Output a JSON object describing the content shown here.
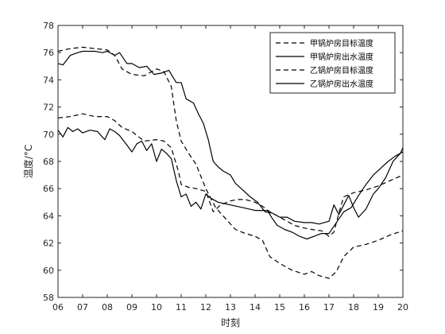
{
  "chart_data": {
    "type": "line",
    "xlabel": "时刻",
    "ylabel": "温度/°C",
    "xlim": [
      6,
      20
    ],
    "ylim": [
      58,
      78
    ],
    "x_ticks": [
      6,
      7,
      8,
      9,
      10,
      11,
      12,
      13,
      14,
      15,
      16,
      17,
      18,
      19,
      20
    ],
    "x_tick_labels": [
      "06",
      "07",
      "08",
      "09",
      "10",
      "11",
      "12",
      "13",
      "14",
      "15",
      "16",
      "17",
      "18",
      "19",
      "20"
    ],
    "y_ticks": [
      58,
      60,
      62,
      64,
      66,
      68,
      70,
      72,
      74,
      76,
      78
    ],
    "legend_position": "top-right",
    "grid": false,
    "series": [
      {
        "name": "甲锅炉房目标温度",
        "style": "dashed",
        "color": "#000000",
        "points": [
          [
            6.0,
            76.1
          ],
          [
            6.5,
            76.3
          ],
          [
            7.0,
            76.4
          ],
          [
            7.5,
            76.3
          ],
          [
            8.0,
            76.2
          ],
          [
            8.3,
            75.8
          ],
          [
            8.6,
            74.8
          ],
          [
            9.0,
            74.4
          ],
          [
            9.5,
            74.3
          ],
          [
            10.0,
            74.8
          ],
          [
            10.3,
            74.6
          ],
          [
            10.6,
            73.5
          ],
          [
            10.8,
            71.0
          ],
          [
            11.0,
            69.5
          ],
          [
            11.3,
            68.6
          ],
          [
            11.6,
            67.8
          ],
          [
            12.0,
            66.0
          ],
          [
            12.4,
            64.6
          ],
          [
            12.8,
            63.8
          ],
          [
            13.2,
            63.0
          ],
          [
            13.6,
            62.7
          ],
          [
            14.0,
            62.5
          ],
          [
            14.3,
            62.2
          ],
          [
            14.6,
            61.0
          ],
          [
            15.0,
            60.5
          ],
          [
            15.5,
            60.0
          ],
          [
            16.0,
            59.7
          ],
          [
            16.3,
            59.9
          ],
          [
            16.6,
            59.6
          ],
          [
            17.0,
            59.4
          ],
          [
            17.3,
            59.9
          ],
          [
            17.6,
            61.0
          ],
          [
            18.0,
            61.7
          ],
          [
            18.5,
            61.9
          ],
          [
            19.0,
            62.2
          ],
          [
            19.5,
            62.6
          ],
          [
            20.0,
            62.9
          ]
        ]
      },
      {
        "name": "甲锅炉房出水温度",
        "style": "solid",
        "color": "#000000",
        "points": [
          [
            6.0,
            75.2
          ],
          [
            6.2,
            75.1
          ],
          [
            6.5,
            75.8
          ],
          [
            6.8,
            76.0
          ],
          [
            7.0,
            76.1
          ],
          [
            7.5,
            76.1
          ],
          [
            7.8,
            76.0
          ],
          [
            8.0,
            76.1
          ],
          [
            8.3,
            75.8
          ],
          [
            8.5,
            76.0
          ],
          [
            8.8,
            75.2
          ],
          [
            9.0,
            75.2
          ],
          [
            9.3,
            74.9
          ],
          [
            9.6,
            75.0
          ],
          [
            9.9,
            74.4
          ],
          [
            10.2,
            74.5
          ],
          [
            10.5,
            74.7
          ],
          [
            10.8,
            73.8
          ],
          [
            11.0,
            73.8
          ],
          [
            11.2,
            72.6
          ],
          [
            11.5,
            72.3
          ],
          [
            11.7,
            71.5
          ],
          [
            11.9,
            70.8
          ],
          [
            12.1,
            69.6
          ],
          [
            12.3,
            68.0
          ],
          [
            12.5,
            67.6
          ],
          [
            12.7,
            67.3
          ],
          [
            13.0,
            67.0
          ],
          [
            13.2,
            66.4
          ],
          [
            13.5,
            65.9
          ],
          [
            13.8,
            65.4
          ],
          [
            14.1,
            65.0
          ],
          [
            14.4,
            64.3
          ],
          [
            14.7,
            64.2
          ],
          [
            15.0,
            63.9
          ],
          [
            15.3,
            63.9
          ],
          [
            15.6,
            63.6
          ],
          [
            16.0,
            63.5
          ],
          [
            16.3,
            63.5
          ],
          [
            16.6,
            63.4
          ],
          [
            17.0,
            63.6
          ],
          [
            17.2,
            64.8
          ],
          [
            17.4,
            64.1
          ],
          [
            17.6,
            64.8
          ],
          [
            17.8,
            65.5
          ],
          [
            18.0,
            64.6
          ],
          [
            18.2,
            63.9
          ],
          [
            18.5,
            64.5
          ],
          [
            18.8,
            65.6
          ],
          [
            19.0,
            66.0
          ],
          [
            19.3,
            66.8
          ],
          [
            19.6,
            68.0
          ],
          [
            19.9,
            68.6
          ],
          [
            20.0,
            69.0
          ]
        ]
      },
      {
        "name": "乙锅炉房目标温度",
        "style": "dashed",
        "color": "#000000",
        "points": [
          [
            6.0,
            71.2
          ],
          [
            6.5,
            71.3
          ],
          [
            7.0,
            71.5
          ],
          [
            7.5,
            71.3
          ],
          [
            8.0,
            71.3
          ],
          [
            8.3,
            71.0
          ],
          [
            8.6,
            70.5
          ],
          [
            9.0,
            70.2
          ],
          [
            9.5,
            69.5
          ],
          [
            10.0,
            69.6
          ],
          [
            10.3,
            69.5
          ],
          [
            10.6,
            69.0
          ],
          [
            10.9,
            67.2
          ],
          [
            11.0,
            66.3
          ],
          [
            11.3,
            66.1
          ],
          [
            11.6,
            66.0
          ],
          [
            12.0,
            65.8
          ],
          [
            12.3,
            64.3
          ],
          [
            12.6,
            64.8
          ],
          [
            13.0,
            65.1
          ],
          [
            13.3,
            65.2
          ],
          [
            13.6,
            65.2
          ],
          [
            14.0,
            65.0
          ],
          [
            14.3,
            64.7
          ],
          [
            14.6,
            64.3
          ],
          [
            15.0,
            63.9
          ],
          [
            15.3,
            63.6
          ],
          [
            15.6,
            63.3
          ],
          [
            16.0,
            63.1
          ],
          [
            16.3,
            63.0
          ],
          [
            16.7,
            62.9
          ],
          [
            17.0,
            62.5
          ],
          [
            17.2,
            62.8
          ],
          [
            17.4,
            64.2
          ],
          [
            17.6,
            65.4
          ],
          [
            18.0,
            65.7
          ],
          [
            18.5,
            65.9
          ],
          [
            19.0,
            66.2
          ],
          [
            19.5,
            66.6
          ],
          [
            20.0,
            67.0
          ]
        ]
      },
      {
        "name": "乙锅炉房出水温度",
        "style": "solid",
        "color": "#000000",
        "points": [
          [
            6.0,
            70.3
          ],
          [
            6.2,
            69.8
          ],
          [
            6.4,
            70.5
          ],
          [
            6.6,
            70.2
          ],
          [
            6.8,
            70.4
          ],
          [
            7.0,
            70.1
          ],
          [
            7.3,
            70.3
          ],
          [
            7.6,
            70.2
          ],
          [
            7.9,
            69.6
          ],
          [
            8.1,
            70.4
          ],
          [
            8.3,
            70.2
          ],
          [
            8.5,
            69.9
          ],
          [
            8.8,
            69.2
          ],
          [
            9.0,
            68.7
          ],
          [
            9.2,
            69.3
          ],
          [
            9.4,
            69.5
          ],
          [
            9.6,
            68.8
          ],
          [
            9.8,
            69.3
          ],
          [
            10.0,
            68.0
          ],
          [
            10.2,
            68.9
          ],
          [
            10.4,
            68.6
          ],
          [
            10.6,
            68.2
          ],
          [
            10.8,
            66.6
          ],
          [
            11.0,
            65.4
          ],
          [
            11.2,
            65.6
          ],
          [
            11.4,
            64.7
          ],
          [
            11.6,
            65.0
          ],
          [
            11.8,
            64.5
          ],
          [
            12.0,
            65.6
          ],
          [
            12.2,
            65.3
          ],
          [
            12.5,
            65.0
          ],
          [
            13.0,
            64.8
          ],
          [
            13.5,
            64.6
          ],
          [
            14.0,
            64.4
          ],
          [
            14.5,
            64.4
          ],
          [
            14.7,
            63.8
          ],
          [
            14.9,
            63.3
          ],
          [
            15.2,
            63.0
          ],
          [
            15.5,
            62.8
          ],
          [
            15.8,
            62.5
          ],
          [
            16.1,
            62.3
          ],
          [
            16.4,
            62.5
          ],
          [
            16.7,
            62.7
          ],
          [
            17.0,
            62.7
          ],
          [
            17.3,
            63.5
          ],
          [
            17.6,
            64.3
          ],
          [
            17.9,
            64.6
          ],
          [
            18.2,
            65.5
          ],
          [
            18.5,
            66.3
          ],
          [
            18.8,
            67.0
          ],
          [
            19.1,
            67.5
          ],
          [
            19.4,
            68.0
          ],
          [
            19.7,
            68.4
          ],
          [
            20.0,
            68.7
          ]
        ]
      }
    ]
  }
}
